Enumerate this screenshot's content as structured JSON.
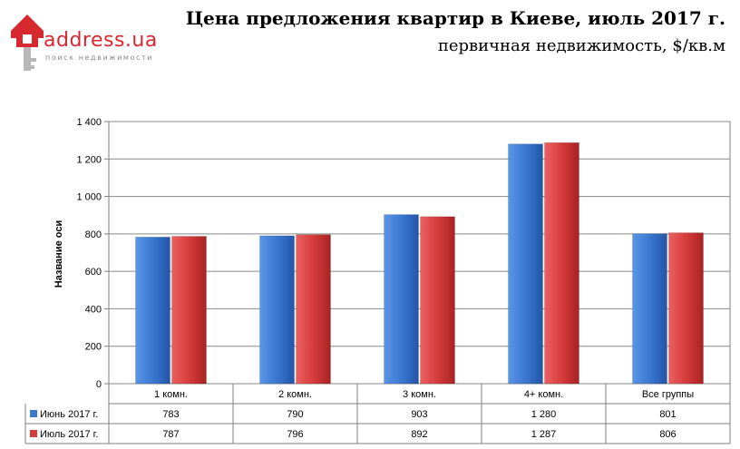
{
  "logo": {
    "name": "address.ua",
    "tagline": "поиск недвижимости"
  },
  "header": {
    "title": "Цена предложения квартир в Киеве, июль 2017 г.",
    "subtitle": "первичная недвижимость, $/кв.м"
  },
  "chart_data": {
    "type": "bar",
    "ylabel": "Название оси",
    "xlabel": "",
    "ylim": [
      0,
      1400
    ],
    "yticks": [
      0,
      200,
      400,
      600,
      800,
      1000,
      1200,
      1400
    ],
    "ytick_labels": [
      "0",
      "200",
      "400",
      "600",
      "800",
      "1 000",
      "1 200",
      "1 400"
    ],
    "grid": true,
    "legend": "table-below",
    "categories": [
      "1 комн.",
      "2 комн.",
      "3 комн.",
      "4+ комн.",
      "Все группы"
    ],
    "series": [
      {
        "name": "Июнь 2017 г.",
        "color": "#3a78d0",
        "values": [
          783,
          790,
          903,
          1280,
          801
        ],
        "labels": [
          "783",
          "790",
          "903",
          "1 280",
          "801"
        ]
      },
      {
        "name": "Июль 2017 г.",
        "color": "#d63c3c",
        "values": [
          787,
          796,
          892,
          1287,
          806
        ],
        "labels": [
          "787",
          "796",
          "892",
          "1 287",
          "806"
        ]
      }
    ]
  }
}
